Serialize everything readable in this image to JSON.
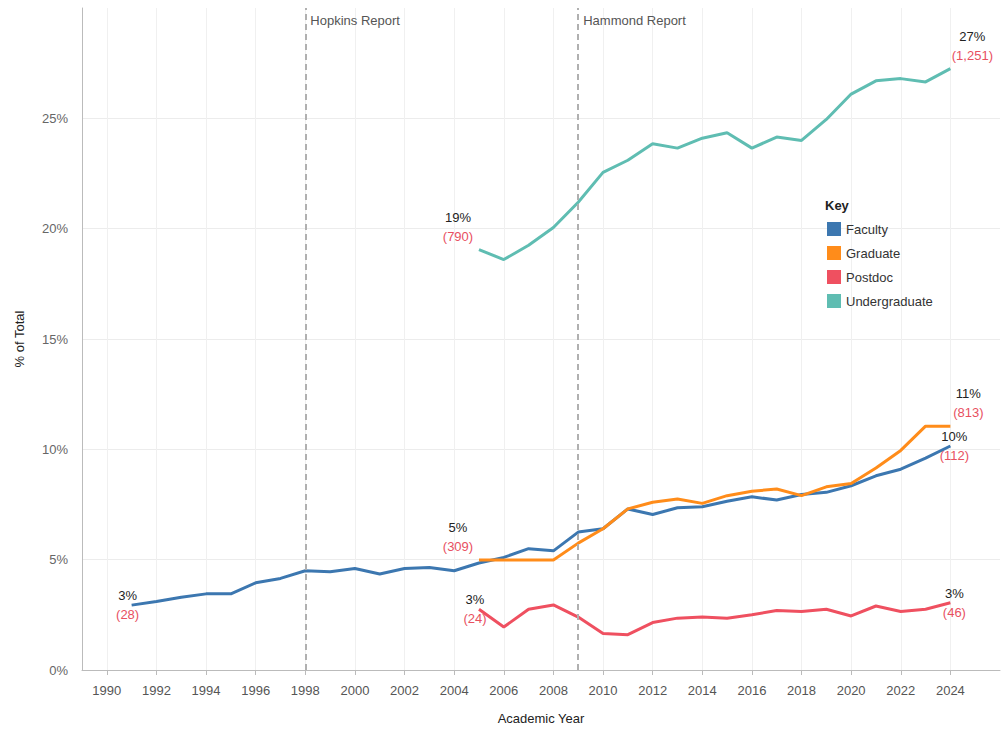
{
  "chart_data": {
    "type": "line",
    "x_label": "Academic Year",
    "y_label": "% of Total",
    "x": [
      1991,
      1992,
      1993,
      1994,
      1995,
      1996,
      1997,
      1998,
      1999,
      2000,
      2001,
      2002,
      2003,
      2004,
      2005,
      2006,
      2007,
      2008,
      2009,
      2010,
      2011,
      2012,
      2013,
      2014,
      2015,
      2016,
      2017,
      2018,
      2019,
      2020,
      2021,
      2022,
      2023,
      2024
    ],
    "xlim": [
      1989,
      2026
    ],
    "xticks": [
      1990,
      1992,
      1994,
      1996,
      1998,
      2000,
      2002,
      2004,
      2006,
      2008,
      2010,
      2012,
      2014,
      2016,
      2018,
      2020,
      2022,
      2024
    ],
    "ylim": [
      0,
      30
    ],
    "yticks": [
      {
        "value": 0,
        "label": "0%"
      },
      {
        "value": 5,
        "label": "5%"
      },
      {
        "value": 10,
        "label": "10%"
      },
      {
        "value": 15,
        "label": "15%"
      },
      {
        "value": 20,
        "label": "20%"
      },
      {
        "value": 25,
        "label": "25%"
      }
    ],
    "grid": true,
    "legend": "upper right",
    "legend_title": "Key",
    "reference_lines": [
      {
        "x": 1998,
        "label": "Hopkins Report"
      },
      {
        "x": 2009,
        "label": "Hammond Report"
      }
    ],
    "series": [
      {
        "name": "Faculty",
        "color": "#3c77b0",
        "values": [
          2.94,
          3.1,
          3.3,
          3.45,
          3.45,
          3.95,
          4.15,
          4.5,
          4.45,
          4.6,
          4.35,
          4.6,
          4.65,
          4.5,
          4.85,
          5.1,
          5.5,
          5.4,
          6.25,
          6.4,
          7.3,
          7.05,
          7.35,
          7.4,
          7.65,
          7.85,
          7.7,
          7.95,
          8.05,
          8.35,
          8.8,
          9.1,
          9.6,
          10.15
        ],
        "annotations": [
          {
            "x": 1991,
            "label": "3%",
            "sublabel": "(28)"
          },
          {
            "x": 2024,
            "label": "10%",
            "sublabel": "(112)"
          }
        ]
      },
      {
        "name": "Graduate",
        "color": "#ff8c1a",
        "values": [
          null,
          null,
          null,
          null,
          null,
          null,
          null,
          null,
          null,
          null,
          null,
          null,
          null,
          null,
          4.98,
          4.98,
          4.98,
          4.98,
          5.75,
          6.4,
          7.3,
          7.6,
          7.75,
          7.55,
          7.9,
          8.1,
          8.2,
          7.9,
          8.3,
          8.45,
          9.15,
          9.95,
          11.05,
          11.05
        ],
        "annotations": [
          {
            "x": 2005,
            "label": "5%",
            "sublabel": "(309)"
          },
          {
            "x": 2024,
            "label": "11%",
            "sublabel": "(813)"
          }
        ]
      },
      {
        "name": "Postdoc",
        "color": "#ef5060",
        "values": [
          null,
          null,
          null,
          null,
          null,
          null,
          null,
          null,
          null,
          null,
          null,
          null,
          null,
          null,
          2.75,
          1.95,
          2.75,
          2.95,
          2.4,
          1.65,
          1.6,
          2.15,
          2.35,
          2.4,
          2.35,
          2.5,
          2.7,
          2.65,
          2.75,
          2.45,
          2.9,
          2.65,
          2.75,
          3.05
        ],
        "annotations": [
          {
            "x": 2005,
            "label": "3%",
            "sublabel": "(24)"
          },
          {
            "x": 2024,
            "label": "3%",
            "sublabel": "(46)"
          }
        ]
      },
      {
        "name": "Undergraduate",
        "color": "#5fbdb2",
        "values": [
          null,
          null,
          null,
          null,
          null,
          null,
          null,
          null,
          null,
          null,
          null,
          null,
          null,
          null,
          19.05,
          18.6,
          19.25,
          20.05,
          21.2,
          22.55,
          23.1,
          23.85,
          23.65,
          24.1,
          24.35,
          23.65,
          24.15,
          24.0,
          24.95,
          26.1,
          26.7,
          26.8,
          26.65,
          27.25
        ],
        "annotations": [
          {
            "x": 2005,
            "label": "19%",
            "sublabel": "(790)"
          },
          {
            "x": 2024,
            "label": "27%",
            "sublabel": "(1,251)"
          }
        ]
      }
    ]
  }
}
